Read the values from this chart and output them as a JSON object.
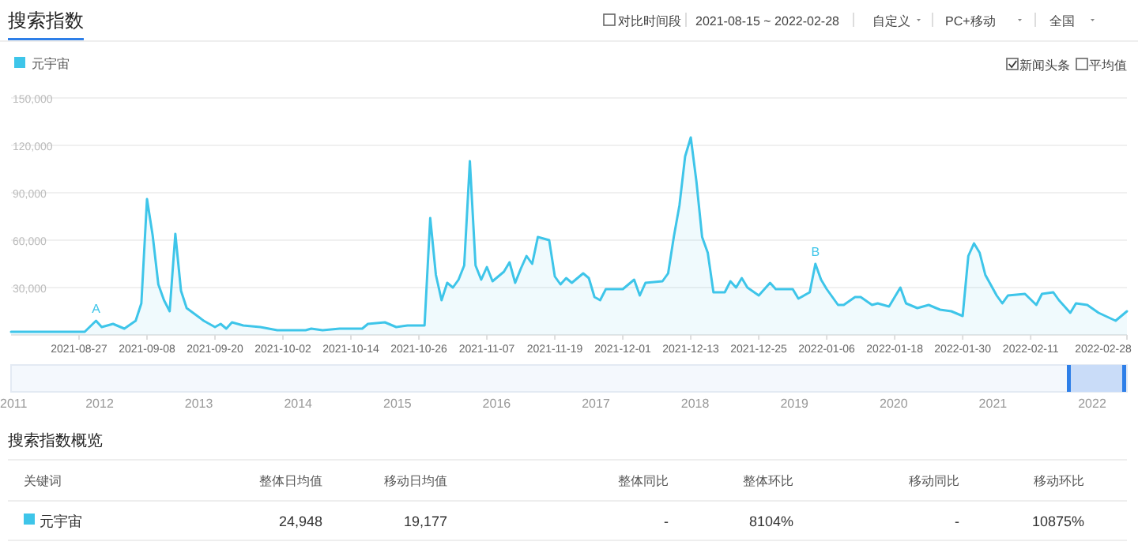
{
  "chart_data": {
    "type": "area",
    "title": "搜索指数",
    "legend": "top left",
    "grid": "y",
    "marker": "none",
    "xlim": [
      "2021-08-15",
      "2022-02-28"
    ],
    "xticks": [
      "2021-08-27",
      "2021-09-08",
      "2021-09-20",
      "2021-10-02",
      "2021-10-14",
      "2021-10-26",
      "2021-11-07",
      "2021-11-19",
      "2021-12-01",
      "2021-12-13",
      "2021-12-25",
      "2022-01-06",
      "2022-01-18",
      "2022-01-30",
      "2022-02-11",
      "2022-02-28"
    ],
    "ylim": [
      0,
      150000
    ],
    "yticks": [
      {
        "value": 0,
        "label": null
      },
      {
        "value": 30000,
        "label": "30,000"
      },
      {
        "value": 60000,
        "label": "60,000"
      },
      {
        "value": 90000,
        "label": "90,000"
      },
      {
        "value": 120000,
        "label": "120,000"
      },
      {
        "value": 150000,
        "label": "150,000"
      }
    ],
    "x": [
      "2021-08-15",
      "2021-08-28",
      "2021-08-30",
      "2021-08-31",
      "2021-09-02",
      "2021-09-04",
      "2021-09-06",
      "2021-09-07",
      "2021-09-08",
      "2021-09-09",
      "2021-09-10",
      "2021-09-11",
      "2021-09-12",
      "2021-09-13",
      "2021-09-14",
      "2021-09-15",
      "2021-09-18",
      "2021-09-20",
      "2021-09-21",
      "2021-09-22",
      "2021-09-23",
      "2021-09-25",
      "2021-09-28",
      "2021-10-01",
      "2021-10-06",
      "2021-10-07",
      "2021-10-09",
      "2021-10-12",
      "2021-10-16",
      "2021-10-17",
      "2021-10-20",
      "2021-10-22",
      "2021-10-24",
      "2021-10-27",
      "2021-10-28",
      "2021-10-29",
      "2021-10-30",
      "2021-10-31",
      "2021-11-01",
      "2021-11-02",
      "2021-11-03",
      "2021-11-04",
      "2021-11-05",
      "2021-11-06",
      "2021-11-07",
      "2021-11-08",
      "2021-11-10",
      "2021-11-11",
      "2021-11-12",
      "2021-11-13",
      "2021-11-14",
      "2021-11-15",
      "2021-11-16",
      "2021-11-18",
      "2021-11-19",
      "2021-11-20",
      "2021-11-21",
      "2021-11-22",
      "2021-11-24",
      "2021-11-25",
      "2021-11-26",
      "2021-11-27",
      "2021-11-28",
      "2021-12-01",
      "2021-12-03",
      "2021-12-04",
      "2021-12-05",
      "2021-12-08",
      "2021-12-09",
      "2021-12-10",
      "2021-12-11",
      "2021-12-12",
      "2021-12-13",
      "2021-12-14",
      "2021-12-15",
      "2021-12-16",
      "2021-12-17",
      "2021-12-19",
      "2021-12-20",
      "2021-12-21",
      "2021-12-22",
      "2021-12-23",
      "2021-12-25",
      "2021-12-27",
      "2021-12-28",
      "2021-12-31",
      "2022-01-01",
      "2022-01-03",
      "2022-01-04",
      "2022-01-05",
      "2022-01-06",
      "2022-01-08",
      "2022-01-09",
      "2022-01-11",
      "2022-01-12",
      "2022-01-14",
      "2022-01-15",
      "2022-01-17",
      "2022-01-19",
      "2022-01-20",
      "2022-01-22",
      "2022-01-24",
      "2022-01-26",
      "2022-01-28",
      "2022-01-30",
      "2022-01-31",
      "2022-02-01",
      "2022-02-02",
      "2022-02-03",
      "2022-02-05",
      "2022-02-06",
      "2022-02-07",
      "2022-02-10",
      "2022-02-12",
      "2022-02-13",
      "2022-02-15",
      "2022-02-16",
      "2022-02-18",
      "2022-02-19",
      "2022-02-21",
      "2022-02-23",
      "2022-02-26",
      "2022-02-28"
    ],
    "series": [
      {
        "name": "元宇宙",
        "color": "#3ec5e9",
        "values": [
          2000,
          2000,
          9000,
          5000,
          7000,
          4000,
          9000,
          20000,
          86000,
          63000,
          32000,
          22000,
          15000,
          64000,
          28000,
          17000,
          9000,
          5000,
          7000,
          4000,
          8000,
          6000,
          5000,
          3000,
          3000,
          4000,
          3000,
          4000,
          4000,
          7000,
          8000,
          5000,
          6000,
          6000,
          74000,
          38000,
          22000,
          33000,
          30000,
          35000,
          44000,
          110000,
          44000,
          35000,
          43000,
          34000,
          40000,
          46000,
          33000,
          42000,
          50000,
          45000,
          62000,
          60000,
          37000,
          32000,
          36000,
          33000,
          39000,
          36000,
          24000,
          22000,
          29000,
          29000,
          35000,
          25000,
          33000,
          34000,
          39000,
          62000,
          82000,
          113000,
          125000,
          97000,
          62000,
          52000,
          27000,
          27000,
          34000,
          30000,
          36000,
          30000,
          25000,
          33000,
          29000,
          29000,
          23000,
          27000,
          45000,
          35000,
          29000,
          19000,
          19000,
          24000,
          24000,
          19000,
          20000,
          18000,
          30000,
          20000,
          17000,
          19000,
          16000,
          15000,
          12000,
          50000,
          58000,
          52000,
          38000,
          25000,
          20000,
          25000,
          26000,
          19000,
          26000,
          27000,
          22000,
          14000,
          20000,
          19000,
          14000,
          9000,
          15000
        ]
      }
    ],
    "annotations": [
      {
        "text": "A",
        "x": "2021-08-30",
        "y": 9000
      },
      {
        "text": "B",
        "x": "2022-01-04",
        "y": 45000
      },
      "对比时间段",
      "2021-08-15 ~ 2022-02-28",
      "自定义",
      "PC+移动",
      "全国",
      "新闻头条",
      "平均值",
      "2011",
      "2012",
      "2013",
      "2014",
      "2015",
      "2016",
      "2017",
      "2018",
      "2019",
      "2020",
      "2021",
      "2022",
      "搜索指数概览",
      "关键词",
      "整体日均值",
      "移动日均值",
      "整体同比",
      "整体环比",
      "移动同比",
      "移动环比",
      "元宇宙",
      "24,948",
      "19,177",
      "-",
      "8104%",
      "-",
      "10875%"
    ]
  }
}
